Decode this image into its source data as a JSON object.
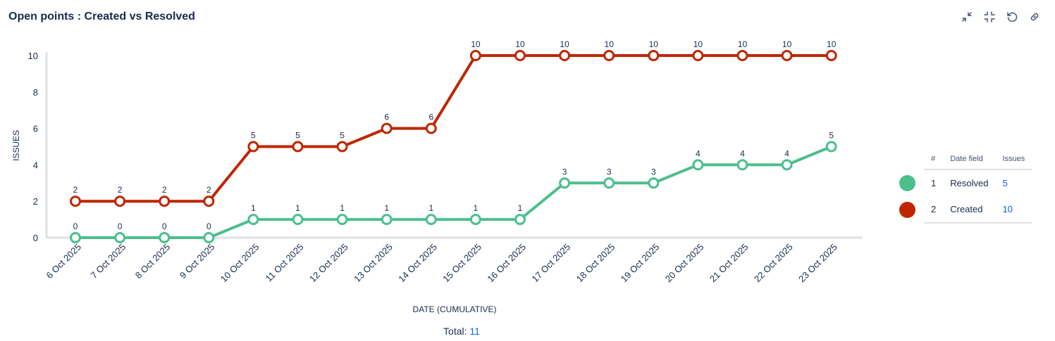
{
  "header": {
    "title": "Open points : Created vs Resolved"
  },
  "toolbar": {
    "icons": [
      "collapse-icon",
      "minimize-icon",
      "refresh-icon",
      "link-icon"
    ]
  },
  "legend": {
    "headers": {
      "num": "#",
      "date_field": "Date field",
      "issues": "Issues"
    },
    "rows": [
      {
        "num": "1",
        "label": "Resolved",
        "issues": "5",
        "color": "#4bbf8c"
      },
      {
        "num": "2",
        "label": "Created",
        "issues": "10",
        "color": "#bf2600"
      }
    ]
  },
  "footer": {
    "total_label": "Total:",
    "total_value": "11"
  },
  "colors": {
    "resolved": "#4bbf8c",
    "created": "#bf2600",
    "axis": "#dfe1e6",
    "link": "#0c66e4"
  },
  "chart_data": {
    "type": "line",
    "xlabel": "DATE (CUMULATIVE)",
    "ylabel": "ISSUES",
    "ylim": [
      0,
      10
    ],
    "yticks": [
      0,
      2,
      4,
      6,
      8,
      10
    ],
    "categories": [
      "6 Oct 2025",
      "7 Oct 2025",
      "8 Oct 2025",
      "9 Oct 2025",
      "10 Oct 2025",
      "11 Oct 2025",
      "12 Oct 2025",
      "13 Oct 2025",
      "14 Oct 2025",
      "15 Oct 2025",
      "16 Oct 2025",
      "17 Oct 2025",
      "18 Oct 2025",
      "19 Oct 2025",
      "20 Oct 2025",
      "21 Oct 2025",
      "22 Oct 2025",
      "23 Oct 2025"
    ],
    "series": [
      {
        "name": "Created",
        "color": "#bf2600",
        "values": [
          2,
          2,
          2,
          2,
          5,
          5,
          5,
          6,
          6,
          10,
          10,
          10,
          10,
          10,
          10,
          10,
          10,
          10
        ]
      },
      {
        "name": "Resolved",
        "color": "#4bbf8c",
        "values": [
          0,
          0,
          0,
          0,
          1,
          1,
          1,
          1,
          1,
          1,
          1,
          3,
          3,
          3,
          4,
          4,
          4,
          5
        ]
      }
    ],
    "data_labels": true,
    "legend_position": "right",
    "grid": false
  }
}
